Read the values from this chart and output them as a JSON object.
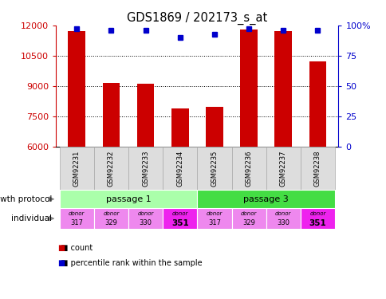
{
  "title": "GDS1869 / 202173_s_at",
  "samples": [
    "GSM92231",
    "GSM92232",
    "GSM92233",
    "GSM92234",
    "GSM92235",
    "GSM92236",
    "GSM92237",
    "GSM92238"
  ],
  "counts": [
    11700,
    9150,
    9100,
    7900,
    7950,
    11800,
    11700,
    10200
  ],
  "percentiles": [
    97,
    96,
    96,
    90,
    93,
    97,
    96,
    96
  ],
  "ymin": 6000,
  "ymax": 12000,
  "yticks": [
    6000,
    7500,
    9000,
    10500,
    12000
  ],
  "y2ticks": [
    0,
    25,
    50,
    75,
    100
  ],
  "bar_color": "#cc0000",
  "dot_color": "#0000cc",
  "passage_1_color": "#aaffaa",
  "passage_3_color": "#44dd44",
  "donor_colors_light": "#ee88ee",
  "donor_colors_bold": "#ee22ee",
  "donors": [
    "317",
    "329",
    "330",
    "351",
    "317",
    "329",
    "330",
    "351"
  ],
  "donors_bold": [
    false,
    false,
    false,
    true,
    false,
    false,
    false,
    true
  ],
  "growth_protocol_label": "growth protocol",
  "individual_label": "individual",
  "legend_count": "count",
  "legend_percentile": "percentile rank within the sample",
  "passage_labels": [
    "passage 1",
    "passage 3"
  ],
  "passage_1_samples": [
    0,
    1,
    2,
    3
  ],
  "passage_3_samples": [
    4,
    5,
    6,
    7
  ],
  "sample_box_color": "#dddddd",
  "sample_box_edgecolor": "#aaaaaa"
}
